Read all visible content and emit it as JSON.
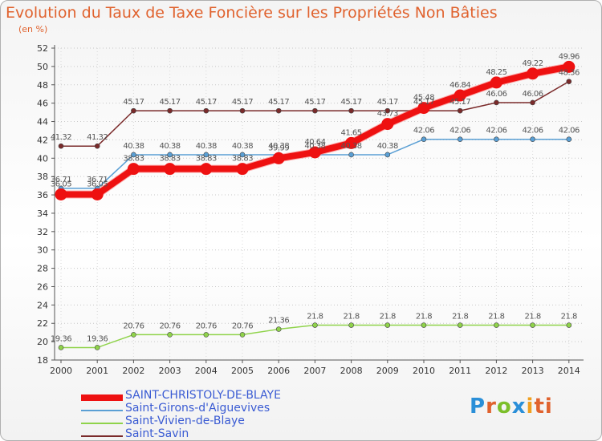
{
  "title": "Evolution du Taux de Taxe Foncière sur les Propriétés Non Bâties",
  "unit_label": "(en %)",
  "logo_text": "Proxiti",
  "chart_data": {
    "type": "line",
    "title": "Evolution du Taux de Taxe Foncière sur les Propriétés Non Bâties",
    "ylabel": "(en %)",
    "xlabel": "",
    "ylim": [
      18,
      52
    ],
    "yticks": [
      18,
      20,
      22,
      24,
      26,
      28,
      30,
      32,
      34,
      36,
      38,
      40,
      42,
      44,
      46,
      48,
      50,
      52
    ],
    "categories": [
      "2000",
      "2001",
      "2002",
      "2003",
      "2004",
      "2005",
      "2006",
      "2007",
      "2008",
      "2009",
      "2010",
      "2011",
      "2012",
      "2013",
      "2014"
    ],
    "series": [
      {
        "name": "SAINT-CHRISTOLY-DE-BLAYE",
        "color": "#ee1111",
        "values": [
          36.05,
          36.05,
          38.83,
          38.83,
          38.83,
          38.83,
          39.99,
          40.64,
          41.65,
          43.73,
          45.48,
          46.84,
          48.25,
          49.22,
          49.96
        ],
        "labels": [
          "36.05",
          "36.05",
          "38.83",
          "38.83",
          "38.83",
          "38.83",
          "39.99",
          "40.64",
          "41.65",
          "43.73",
          "45.48",
          "46.84",
          "48.25",
          "49.22",
          "49.96"
        ]
      },
      {
        "name": "Saint-Girons-d'Aiguevives",
        "color": "#5a9fd4",
        "values": [
          36.71,
          36.71,
          40.38,
          40.38,
          40.38,
          40.38,
          40.38,
          40.38,
          40.38,
          40.38,
          42.06,
          42.06,
          42.06,
          42.06,
          42.06
        ],
        "labels": [
          "36.71",
          "36.71",
          "40.38",
          "40.38",
          "40.38",
          "40.38",
          "40.38",
          "40.38",
          "40.38",
          "40.38",
          "42.06",
          "42.06",
          "42.06",
          "42.06",
          "42.06"
        ]
      },
      {
        "name": "Saint-Vivien-de-Blaye",
        "color": "#8fd34a",
        "values": [
          19.36,
          19.36,
          20.76,
          20.76,
          20.76,
          20.76,
          21.36,
          21.8,
          21.8,
          21.8,
          21.8,
          21.8,
          21.8,
          21.8,
          21.8
        ],
        "labels": [
          "19.36",
          "19.36",
          "20.76",
          "20.76",
          "20.76",
          "20.76",
          "21.36",
          "21.8",
          "21.8",
          "21.8",
          "21.8",
          "21.8",
          "21.8",
          "21.8",
          "21.8"
        ]
      },
      {
        "name": "Saint-Savin",
        "color": "#7a2a2a",
        "values": [
          41.32,
          41.32,
          45.17,
          45.17,
          45.17,
          45.17,
          45.17,
          45.17,
          45.17,
          45.17,
          45.17,
          45.17,
          46.06,
          46.06,
          48.36
        ],
        "labels": [
          "41.32",
          "41.32",
          "45.17",
          "45.17",
          "45.17",
          "45.17",
          "45.17",
          "45.17",
          "45.17",
          "45.17",
          "45.17",
          "45.17",
          "46.06",
          "46.06",
          "48.36"
        ]
      }
    ],
    "legend_position": "bottom-left"
  }
}
